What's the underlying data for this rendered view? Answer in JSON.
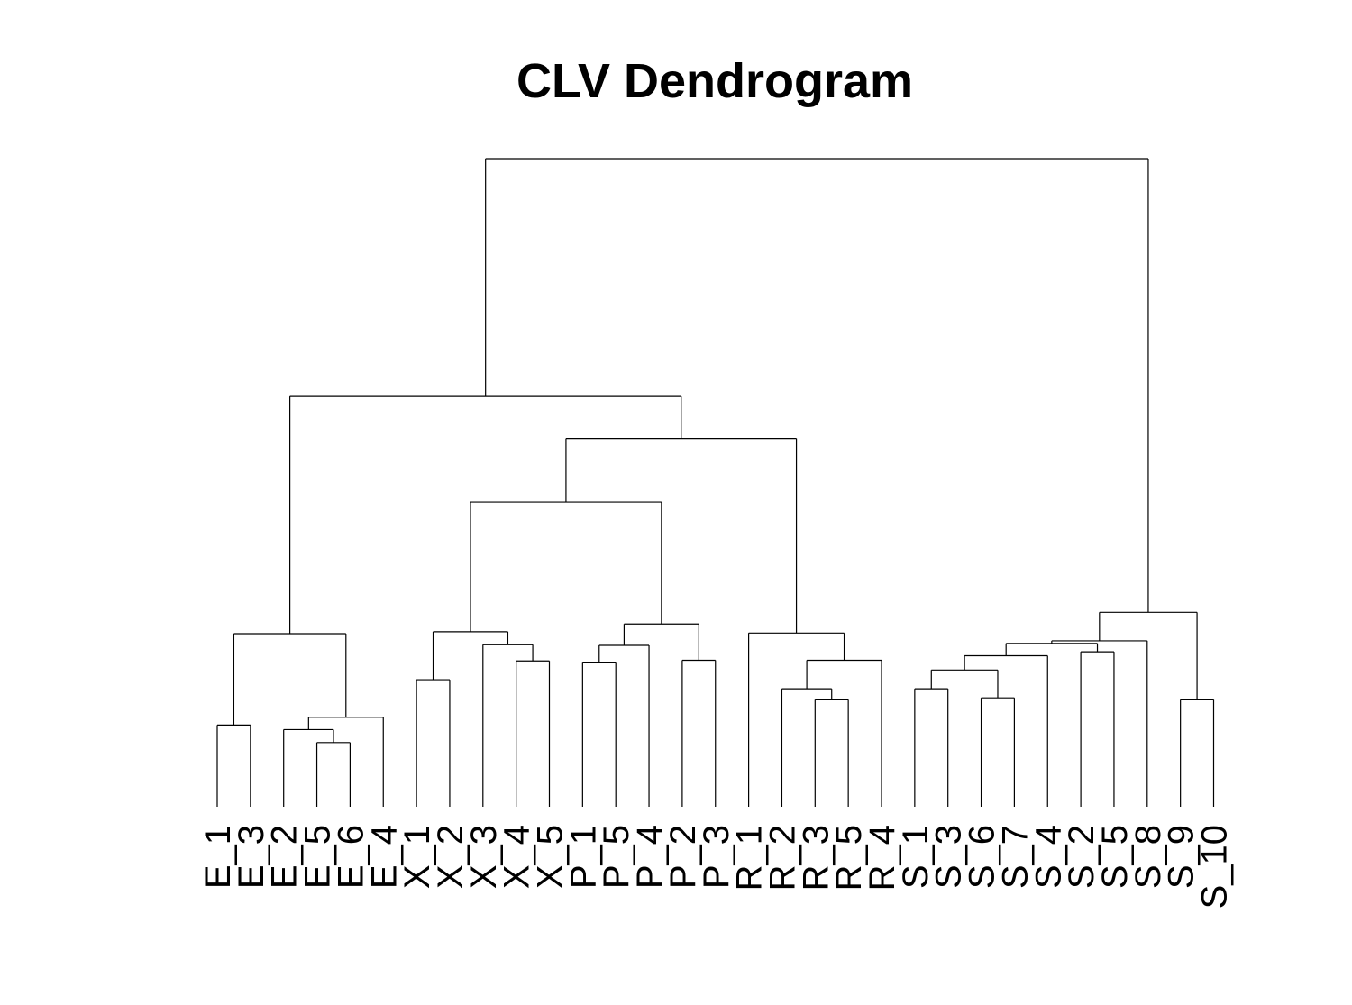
{
  "chart_data": {
    "type": "dendrogram",
    "title": "CLV Dendrogram",
    "xlabel": "",
    "ylabel": "",
    "axes_shown": false,
    "grid": false,
    "leaves": [
      "E_1",
      "E_3",
      "E_2",
      "E_5",
      "E_6",
      "E_4",
      "X_1",
      "X_2",
      "X_3",
      "X_4",
      "X_5",
      "P_1",
      "P_5",
      "P_4",
      "P_2",
      "P_3",
      "R_1",
      "R_2",
      "R_3",
      "R_5",
      "R_4",
      "S_1",
      "S_3",
      "S_6",
      "S_7",
      "S_4",
      "S_2",
      "S_5",
      "S_8",
      "S_9",
      "S_10"
    ],
    "merges": [
      {
        "a": "E_5",
        "b": "E_6",
        "height": 0.099
      },
      {
        "a": "S_9",
        "b": "S_10",
        "height": 0.165
      },
      {
        "a": "R_3",
        "b": "R_5",
        "height": 0.165
      },
      {
        "a": "S_6",
        "b": "S_7",
        "height": 0.168
      },
      {
        "a": "R_2",
        "b": 3,
        "height": 0.182
      },
      {
        "a": "S_1",
        "b": "S_3",
        "height": 0.182
      },
      {
        "a": "E_1",
        "b": "E_3",
        "height": 0.126
      },
      {
        "a": "E_2",
        "b": 1,
        "height": 0.119
      },
      {
        "a": 8,
        "b": "E_4",
        "height": 0.138
      },
      {
        "a": "X_1",
        "b": "X_2",
        "height": 0.196
      },
      {
        "a": "P_1",
        "b": "P_5",
        "height": 0.222
      },
      {
        "a": "X_4",
        "b": "X_5",
        "height": 0.225
      },
      {
        "a": "P_2",
        "b": "P_3",
        "height": 0.226
      },
      {
        "a": 4,
        "b": 6,
        "height": 0.211
      },
      {
        "a": 5,
        "b": "R_4",
        "height": 0.226
      },
      {
        "a": 14,
        "b": "S_4",
        "height": 0.233
      },
      {
        "a": "S_2",
        "b": "S_5",
        "height": 0.239
      },
      {
        "a": "X_3",
        "b": 12,
        "height": 0.25
      },
      {
        "a": 11,
        "b": "P_4",
        "height": 0.249
      },
      {
        "a": 16,
        "b": 17,
        "height": 0.252
      },
      {
        "a": 20,
        "b": "S_8",
        "height": 0.256
      },
      {
        "a": 10,
        "b": 18,
        "height": 0.27
      },
      {
        "a": 19,
        "b": 13,
        "height": 0.282
      },
      {
        "a": "R_1",
        "b": 15,
        "height": 0.268
      },
      {
        "a": 7,
        "b": 9,
        "height": 0.267
      },
      {
        "a": 21,
        "b": 2,
        "height": 0.3
      },
      {
        "a": 22,
        "b": 23,
        "height": 0.47
      },
      {
        "a": 27,
        "b": 24,
        "height": 0.568
      },
      {
        "a": 25,
        "b": 28,
        "height": 0.634
      },
      {
        "a": 29,
        "b": 26,
        "height": 1.0
      }
    ]
  }
}
